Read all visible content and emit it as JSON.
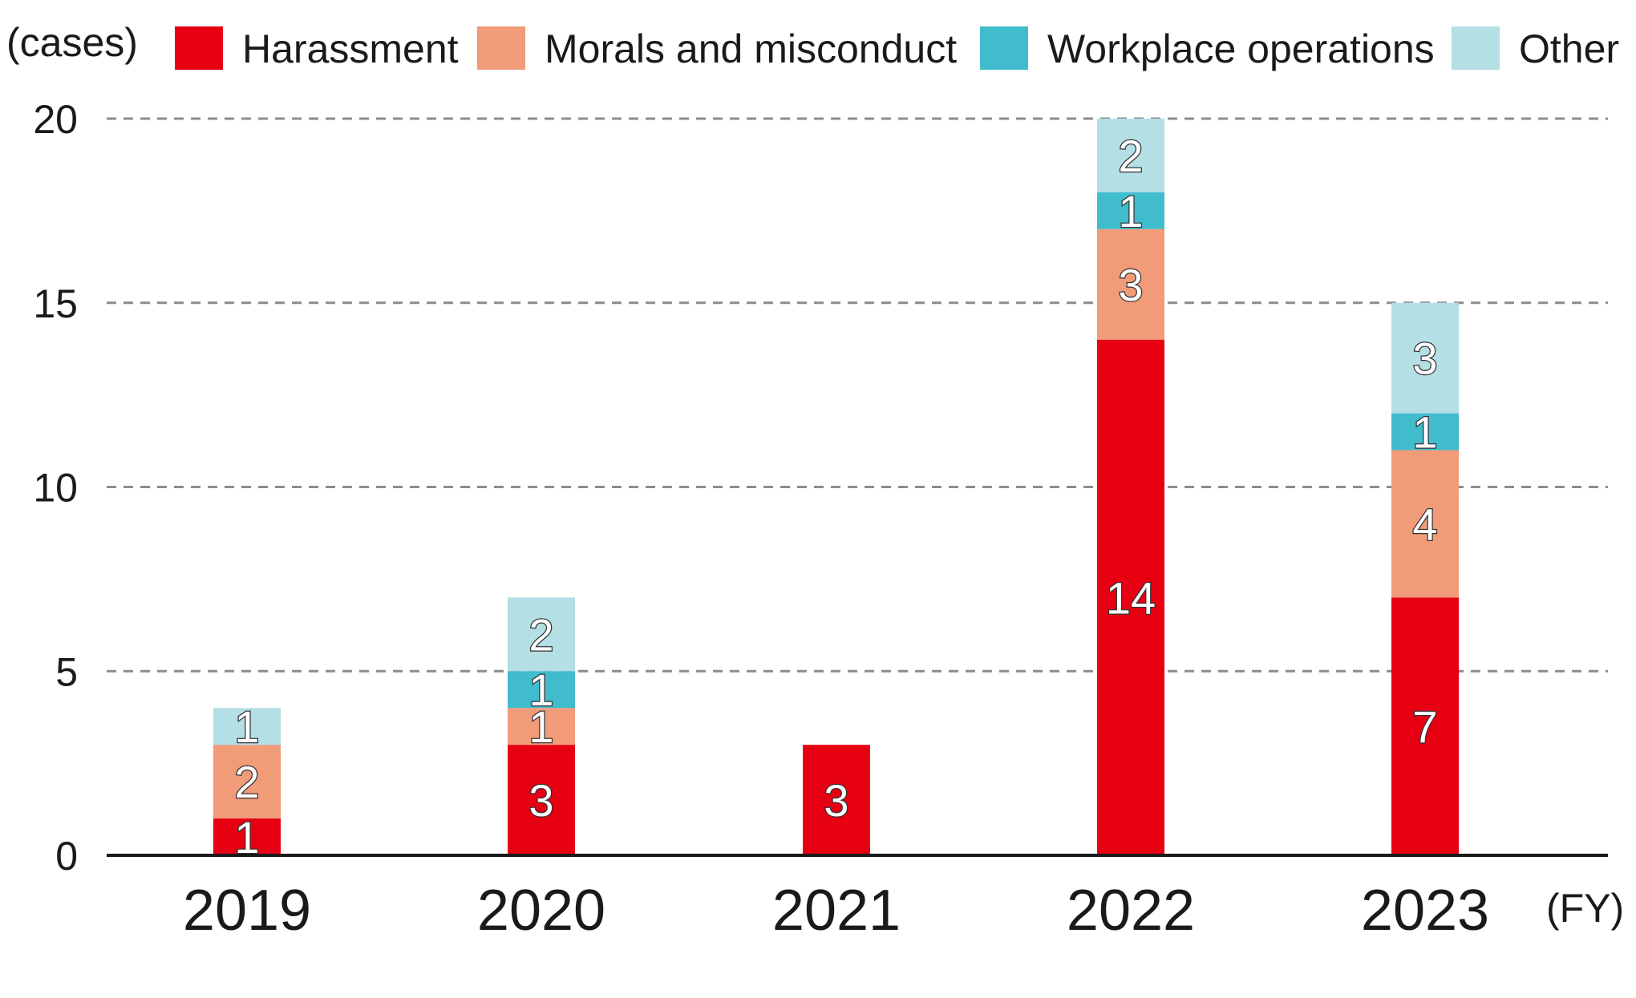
{
  "chart_data": {
    "type": "bar",
    "stacked": true,
    "y_unit_label": "(cases)",
    "x_unit_label": "(FY)",
    "categories": [
      "2019",
      "2020",
      "2021",
      "2022",
      "2023"
    ],
    "series": [
      {
        "name": "Harassment",
        "color": "#e60012",
        "values": [
          1,
          3,
          3,
          14,
          7
        ],
        "labels": [
          "1",
          "3",
          "3",
          "14",
          "7"
        ]
      },
      {
        "name": "Morals and misconduct",
        "color": "#f19b79",
        "values": [
          2,
          1,
          0,
          3,
          4
        ],
        "labels": [
          "2",
          "1",
          "",
          "3",
          "4"
        ]
      },
      {
        "name": "Workplace operations",
        "color": "#40bccd",
        "values": [
          0,
          1,
          0,
          1,
          1
        ],
        "labels": [
          "",
          "1",
          "",
          "1",
          "1"
        ]
      },
      {
        "name": "Other",
        "color": "#b3dfe5",
        "values": [
          1,
          2,
          0,
          2,
          3
        ],
        "labels": [
          "1",
          "2",
          "",
          "2",
          "3"
        ]
      }
    ],
    "ylim": [
      0,
      20
    ],
    "yticks": [
      0,
      5,
      10,
      15,
      20
    ],
    "grid": "dashed horizontal",
    "legend": "top"
  }
}
